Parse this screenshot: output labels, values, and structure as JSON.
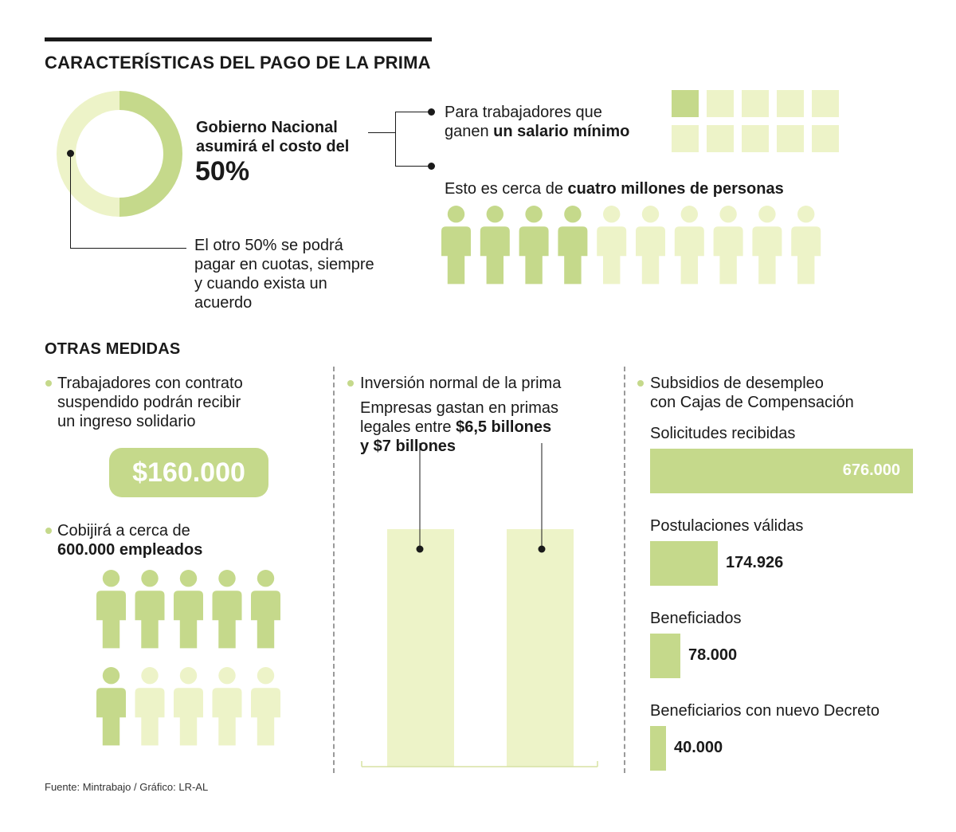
{
  "header": {
    "title": "CARACTERÍSTICAS DEL PAGO DE LA PRIMA"
  },
  "donut": {
    "label_line1": "Gobierno Nacional",
    "label_line2": "asumirá el costo del",
    "percent": "50%",
    "other_line1": "El otro 50% se podrá",
    "other_line2": "pagar en cuotas, siempre",
    "other_line3": "y cuando exista un",
    "other_line4": "acuerdo"
  },
  "min_wage": {
    "line1": "Para trabajadores que",
    "line2_plain": "ganen ",
    "line2_bold": "un salario mínimo",
    "people_plain": "Esto es cerca de ",
    "people_bold": "cuatro millones de personas"
  },
  "otras": {
    "title": "OTRAS MEDIDAS",
    "col1_line1": "Trabajadores con contrato",
    "col1_line2": "suspendido podrán recibir",
    "col1_line3": "un ingreso solidario",
    "amount": "$160.000",
    "cover_line1": "Cobijirá a cerca de",
    "cover_line2": "600.000 empleados",
    "col2_title": "Inversión normal de la prima",
    "col2_line1": "Empresas gastan en primas",
    "col2_line2_plain": "legales entre ",
    "col2_line2_bold": "$6,5 billones",
    "col2_line3": "y $7 billones",
    "col3_title_line1": "Subsidios de desempleo",
    "col3_title_line2": "con Cajas de Compensación"
  },
  "source": "Fuente: Mintrabajo / Gráfico: LR-AL",
  "colors": {
    "green_dark": "#c5d98b",
    "green_light": "#edf3c8",
    "text": "#1a1a1a"
  },
  "chart_data": [
    {
      "type": "pie",
      "values": [
        50,
        50
      ]
    },
    {
      "type": "bar",
      "categories": [
        "",
        ""
      ],
      "values": [
        6.5,
        7
      ]
    },
    {
      "type": "bar",
      "categories": [
        "Solicitudes recibidas",
        "Postulaciones válidas",
        "Beneficiados",
        "Beneficiarios con nuevo Decreto"
      ],
      "values": [
        676000,
        174926,
        78000,
        40000
      ],
      "value_labels": [
        "676.000",
        "174.926",
        "78.000",
        "40.000"
      ]
    }
  ],
  "pictograms": {
    "min_wage_grid": {
      "total": 10,
      "highlighted": 1
    },
    "people_row": {
      "total": 10,
      "highlighted": 4
    },
    "employees": {
      "total": 10,
      "highlighted": 6
    }
  }
}
